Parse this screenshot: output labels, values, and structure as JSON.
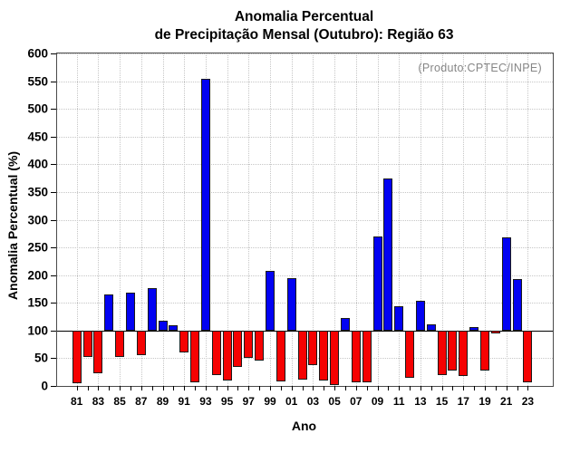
{
  "title": {
    "line1": "Anomalia Percentual",
    "line2": "de Precipitação Mensal (Outubro): Região 63"
  },
  "note": "(Produto:CPTEC/INPE)",
  "axes": {
    "x_title": "Ano",
    "y_title": "Anomalia Percentual (%)"
  },
  "chart_data": {
    "type": "bar",
    "title": "Anomalia Percentual de Precipitação Mensal (Outubro): Região 63",
    "xlabel": "Ano",
    "ylabel": "Anomalia Percentual (%)",
    "ylim": [
      0,
      600
    ],
    "ytick_step": 50,
    "baseline": 100,
    "grid": "dotted",
    "legend": "none",
    "annotation": "(Produto:CPTEC/INPE)",
    "colors": {
      "above_baseline": "#0202f2",
      "below_baseline": "#f50202",
      "bar_border": "#1a1a1a",
      "gridline": "#c6c6c6",
      "annotation_text": "#868686"
    },
    "x_tick_labels": [
      "81",
      "83",
      "85",
      "87",
      "89",
      "91",
      "93",
      "95",
      "97",
      "99",
      "01",
      "03",
      "05",
      "07",
      "09",
      "11",
      "13",
      "15",
      "17",
      "19",
      "21",
      "23"
    ],
    "years": [
      1981,
      1982,
      1983,
      1984,
      1985,
      1986,
      1987,
      1988,
      1989,
      1990,
      1991,
      1992,
      1993,
      1994,
      1995,
      1996,
      1997,
      1998,
      1999,
      2000,
      2001,
      2002,
      2003,
      2004,
      2005,
      2006,
      2007,
      2008,
      2009,
      2010,
      2011,
      2012,
      2013,
      2014,
      2015,
      2016,
      2017,
      2018,
      2019,
      2020,
      2021,
      2022,
      2023
    ],
    "values": [
      5,
      53,
      23,
      165,
      53,
      169,
      55,
      177,
      118,
      110,
      60,
      6,
      555,
      19,
      10,
      35,
      50,
      46,
      207,
      8,
      195,
      12,
      38,
      10,
      1,
      123,
      6,
      7,
      269,
      375,
      144,
      14,
      154,
      111,
      20,
      27,
      18,
      107,
      27,
      94,
      268,
      193,
      7
    ]
  }
}
